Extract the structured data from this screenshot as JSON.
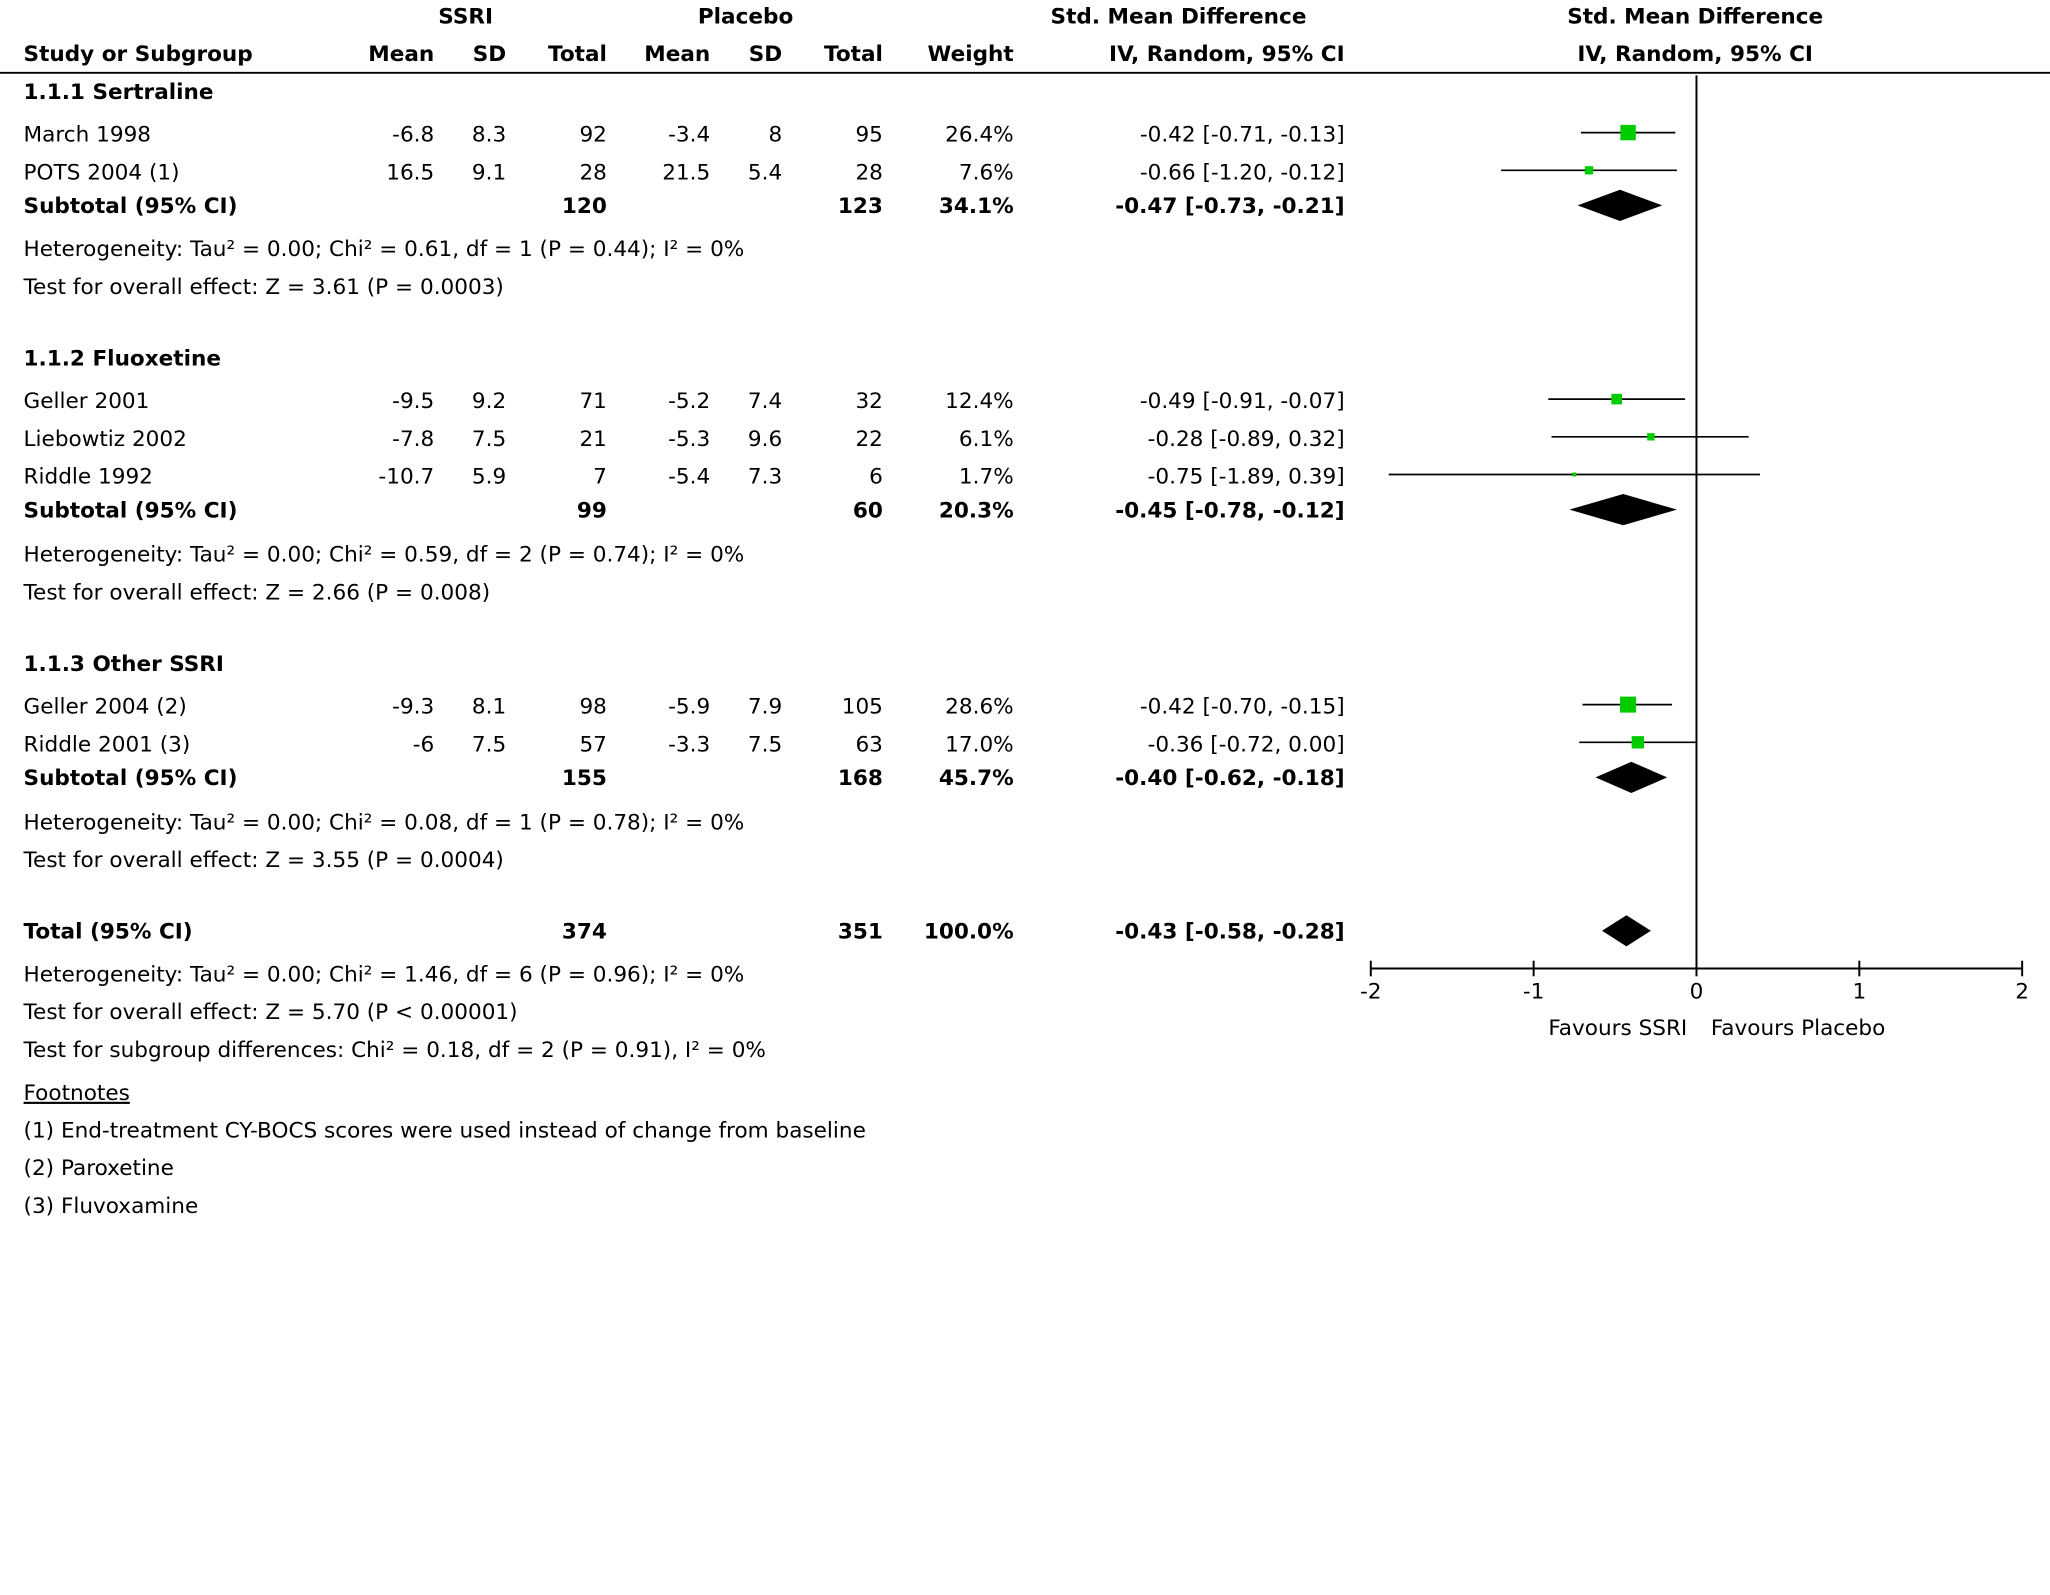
{
  "header": {
    "group1_label": "SSRI",
    "group2_label": "Placebo",
    "col_study": "Study or Subgroup",
    "col_mean": "Mean",
    "col_sd": "SD",
    "col_total": "Total",
    "col_weight": "Weight",
    "col_effect_title": "Std. Mean Difference",
    "col_effect_method": "IV, Random, 95% CI",
    "plot_title": "Std. Mean Difference",
    "plot_method": "IV, Random, 95% CI"
  },
  "chart_data": {
    "type": "forest",
    "measure": "Std. Mean Difference",
    "method": "IV, Random, 95% CI",
    "x_axis": {
      "range": [
        -2,
        2
      ],
      "ticks": [
        -2,
        -1,
        0,
        1,
        2
      ],
      "tick_labels": [
        "-2",
        "-1",
        "0",
        "1",
        "2"
      ],
      "left_label": "Favours SSRI",
      "right_label": "Favours Placebo"
    },
    "subgroups": [
      {
        "name": "1.1.1 Sertraline",
        "studies": [
          {
            "name": "March 1998",
            "ssri_mean": "-6.8",
            "ssri_sd": "8.3",
            "ssri_total": "92",
            "placebo_mean": "-3.4",
            "placebo_sd": "8",
            "placebo_total": "95",
            "weight": "26.4%",
            "ci_text": "-0.42 [-0.71, -0.13]",
            "smd": -0.42,
            "lower": -0.71,
            "upper": -0.13,
            "weight_value": 26.4
          },
          {
            "name": "POTS 2004 (1)",
            "ssri_mean": "16.5",
            "ssri_sd": "9.1",
            "ssri_total": "28",
            "placebo_mean": "21.5",
            "placebo_sd": "5.4",
            "placebo_total": "28",
            "weight": "7.6%",
            "ci_text": "-0.66 [-1.20, -0.12]",
            "smd": -0.66,
            "lower": -1.2,
            "upper": -0.12,
            "weight_value": 7.6
          }
        ],
        "subtotal": {
          "label": "Subtotal (95% CI)",
          "ssri_total": "120",
          "placebo_total": "123",
          "weight": "34.1%",
          "ci_text": "-0.47 [-0.73, -0.21]",
          "smd": -0.47,
          "lower": -0.73,
          "upper": -0.21
        },
        "heterogeneity": "Heterogeneity: Tau² = 0.00; Chi² = 0.61, df = 1 (P = 0.44); I² = 0%",
        "overall_effect": "Test for overall effect: Z = 3.61 (P = 0.0003)"
      },
      {
        "name": "1.1.2 Fluoxetine",
        "studies": [
          {
            "name": "Geller 2001",
            "ssri_mean": "-9.5",
            "ssri_sd": "9.2",
            "ssri_total": "71",
            "placebo_mean": "-5.2",
            "placebo_sd": "7.4",
            "placebo_total": "32",
            "weight": "12.4%",
            "ci_text": "-0.49 [-0.91, -0.07]",
            "smd": -0.49,
            "lower": -0.91,
            "upper": -0.07,
            "weight_value": 12.4
          },
          {
            "name": "Liebowtiz 2002",
            "ssri_mean": "-7.8",
            "ssri_sd": "7.5",
            "ssri_total": "21",
            "placebo_mean": "-5.3",
            "placebo_sd": "9.6",
            "placebo_total": "22",
            "weight": "6.1%",
            "ci_text": "-0.28 [-0.89, 0.32]",
            "smd": -0.28,
            "lower": -0.89,
            "upper": 0.32,
            "weight_value": 6.1
          },
          {
            "name": "Riddle 1992",
            "ssri_mean": "-10.7",
            "ssri_sd": "5.9",
            "ssri_total": "7",
            "placebo_mean": "-5.4",
            "placebo_sd": "7.3",
            "placebo_total": "6",
            "weight": "1.7%",
            "ci_text": "-0.75 [-1.89, 0.39]",
            "smd": -0.75,
            "lower": -1.89,
            "upper": 0.39,
            "weight_value": 1.7
          }
        ],
        "subtotal": {
          "label": "Subtotal (95% CI)",
          "ssri_total": "99",
          "placebo_total": "60",
          "weight": "20.3%",
          "ci_text": "-0.45 [-0.78, -0.12]",
          "smd": -0.45,
          "lower": -0.78,
          "upper": -0.12
        },
        "heterogeneity": "Heterogeneity: Tau² = 0.00; Chi² = 0.59, df = 2 (P = 0.74); I² = 0%",
        "overall_effect": "Test for overall effect: Z = 2.66 (P = 0.008)"
      },
      {
        "name": "1.1.3 Other SSRI",
        "studies": [
          {
            "name": "Geller 2004 (2)",
            "ssri_mean": "-9.3",
            "ssri_sd": "8.1",
            "ssri_total": "98",
            "placebo_mean": "-5.9",
            "placebo_sd": "7.9",
            "placebo_total": "105",
            "weight": "28.6%",
            "ci_text": "-0.42 [-0.70, -0.15]",
            "smd": -0.42,
            "lower": -0.7,
            "upper": -0.15,
            "weight_value": 28.6
          },
          {
            "name": "Riddle 2001 (3)",
            "ssri_mean": "-6",
            "ssri_sd": "7.5",
            "ssri_total": "57",
            "placebo_mean": "-3.3",
            "placebo_sd": "7.5",
            "placebo_total": "63",
            "weight": "17.0%",
            "ci_text": "-0.36 [-0.72, 0.00]",
            "smd": -0.36,
            "lower": -0.72,
            "upper": 0.0,
            "weight_value": 17.0
          }
        ],
        "subtotal": {
          "label": "Subtotal (95% CI)",
          "ssri_total": "155",
          "placebo_total": "168",
          "weight": "45.7%",
          "ci_text": "-0.40 [-0.62, -0.18]",
          "smd": -0.4,
          "lower": -0.62,
          "upper": -0.18
        },
        "heterogeneity": "Heterogeneity: Tau² = 0.00; Chi² = 0.08, df = 1 (P = 0.78); I² = 0%",
        "overall_effect": "Test for overall effect: Z = 3.55 (P = 0.0004)"
      }
    ],
    "total": {
      "label": "Total (95% CI)",
      "ssri_total": "374",
      "placebo_total": "351",
      "weight": "100.0%",
      "ci_text": "-0.43 [-0.58, -0.28]",
      "smd": -0.43,
      "lower": -0.58,
      "upper": -0.28
    },
    "total_heterogeneity": "Heterogeneity: Tau² = 0.00; Chi² = 1.46, df = 6 (P = 0.96); I² = 0%",
    "total_overall_effect": "Test for overall effect: Z = 5.70 (P < 0.00001)",
    "subgroup_differences": "Test for subgroup differences: Chi² = 0.18, df = 2 (P = 0.91), I² = 0%"
  },
  "footnotes": {
    "title": "Footnotes",
    "items": [
      "(1) End-treatment CY-BOCS scores were used instead of change from baseline",
      "(2) Paroxetine",
      "(3) Fluvoxamine"
    ]
  },
  "colors": {
    "study_marker": "#00cc00",
    "diamond": "#000000",
    "lines": "#000000"
  }
}
